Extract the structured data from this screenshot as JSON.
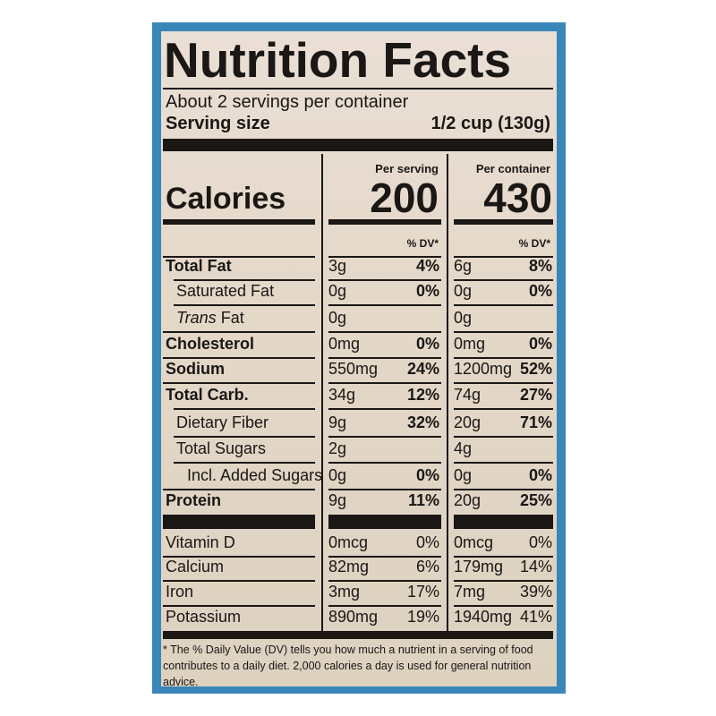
{
  "header": {
    "title": "Nutrition Facts",
    "servings": "About 2 servings per container",
    "serving_size_label": "Serving size",
    "serving_size_value": "1/2 cup (130g)"
  },
  "columns": {
    "serving": "Per serving",
    "container": "Per container",
    "dv": "% DV*"
  },
  "calories": {
    "label": "Calories",
    "serving": "200",
    "container": "430"
  },
  "nutrients": [
    {
      "name": "Total Fat",
      "serving": "3g",
      "serving_dv": "4%",
      "container": "6g",
      "container_dv": "8%"
    },
    {
      "name": "Saturated Fat",
      "serving": "0g",
      "serving_dv": "0%",
      "container": "0g",
      "container_dv": "0%"
    },
    {
      "name_italic": "Trans",
      "name": "Fat",
      "serving": "0g",
      "serving_dv": null,
      "container": "0g",
      "container_dv": null
    },
    {
      "name": "Cholesterol",
      "serving": "0mg",
      "serving_dv": "0%",
      "container": "0mg",
      "container_dv": "0%"
    },
    {
      "name": "Sodium",
      "serving": "550mg",
      "serving_dv": "24%",
      "container": "1200mg",
      "container_dv": "52%"
    },
    {
      "name": "Total Carb.",
      "serving": "34g",
      "serving_dv": "12%",
      "container": "74g",
      "container_dv": "27%"
    },
    {
      "name": "Dietary Fiber",
      "serving": "9g",
      "serving_dv": "32%",
      "container": "20g",
      "container_dv": "71%"
    },
    {
      "name": "Total Sugars",
      "serving": "2g",
      "serving_dv": null,
      "container": "4g",
      "container_dv": null
    },
    {
      "name": "Incl. Added Sugars",
      "serving": "0g",
      "serving_dv": "0%",
      "container": "0g",
      "container_dv": "0%"
    },
    {
      "name": "Protein",
      "serving": "9g",
      "serving_dv": "11%",
      "container": "20g",
      "container_dv": "25%"
    }
  ],
  "vitamins": [
    {
      "name": "Vitamin D",
      "serving": "0mcg",
      "serving_dv": "0%",
      "container": "0mcg",
      "container_dv": "0%"
    },
    {
      "name": "Calcium",
      "serving": "82mg",
      "serving_dv": "6%",
      "container": "179mg",
      "container_dv": "14%"
    },
    {
      "name": "Iron",
      "serving": "3mg",
      "serving_dv": "17%",
      "container": "7mg",
      "container_dv": "39%"
    },
    {
      "name": "Potassium",
      "serving": "890mg",
      "serving_dv": "19%",
      "container": "1940mg",
      "container_dv": "41%"
    }
  ],
  "footnote": "* The % Daily Value (DV) tells you how much a nutrient in a serving of food contributes to a daily diet. 2,000 calories a day is used for general nutrition advice."
}
